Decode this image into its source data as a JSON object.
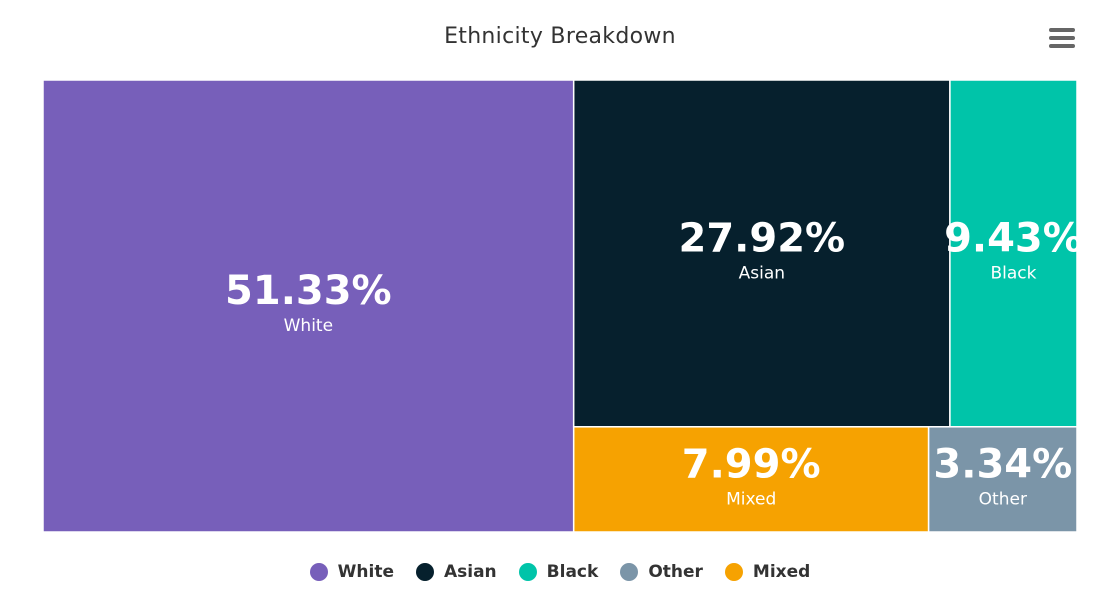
{
  "header": {
    "title": "Ethnicity Breakdown",
    "menu_icon": "hamburger-menu-icon"
  },
  "chart_data": {
    "type": "treemap",
    "title": "Ethnicity Breakdown",
    "series": [
      {
        "name": "White",
        "value": 51.33,
        "label": "51.33%",
        "color": "#775FBA"
      },
      {
        "name": "Asian",
        "value": 27.92,
        "label": "27.92%",
        "color": "#06202D"
      },
      {
        "name": "Black",
        "value": 9.43,
        "label": "9.43%",
        "color": "#00C4A9"
      },
      {
        "name": "Mixed",
        "value": 7.99,
        "label": "7.99%",
        "color": "#F6A201"
      },
      {
        "name": "Other",
        "value": 3.34,
        "label": "3.34%",
        "color": "#7B95A8"
      }
    ],
    "legend": {
      "position": "bottom-center",
      "order": [
        "White",
        "Asian",
        "Black",
        "Other",
        "Mixed"
      ]
    }
  }
}
